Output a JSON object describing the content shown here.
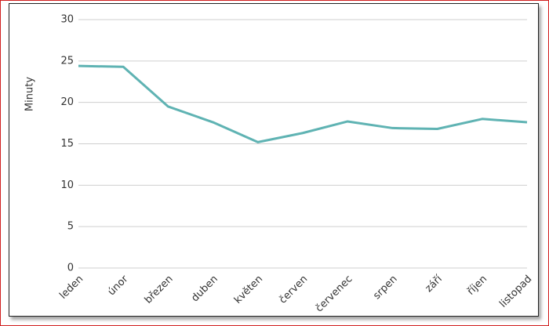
{
  "chart_data": {
    "type": "line",
    "y_label": "Minuty",
    "categories": [
      "leden",
      "únor",
      "březen",
      "duben",
      "květen",
      "červen",
      "červenec",
      "srpen",
      "září",
      "říjen",
      "listopad"
    ],
    "series": [
      {
        "color": "#5fb3b3",
        "values": [
          24.4,
          24.3,
          19.5,
          17.6,
          15.2,
          16.3,
          17.7,
          16.9,
          16.8,
          18.0,
          17.6
        ]
      }
    ],
    "ylim": [
      0,
      30
    ],
    "yticks": [
      0,
      5,
      10,
      15,
      20,
      25,
      30
    ],
    "grid": true
  }
}
